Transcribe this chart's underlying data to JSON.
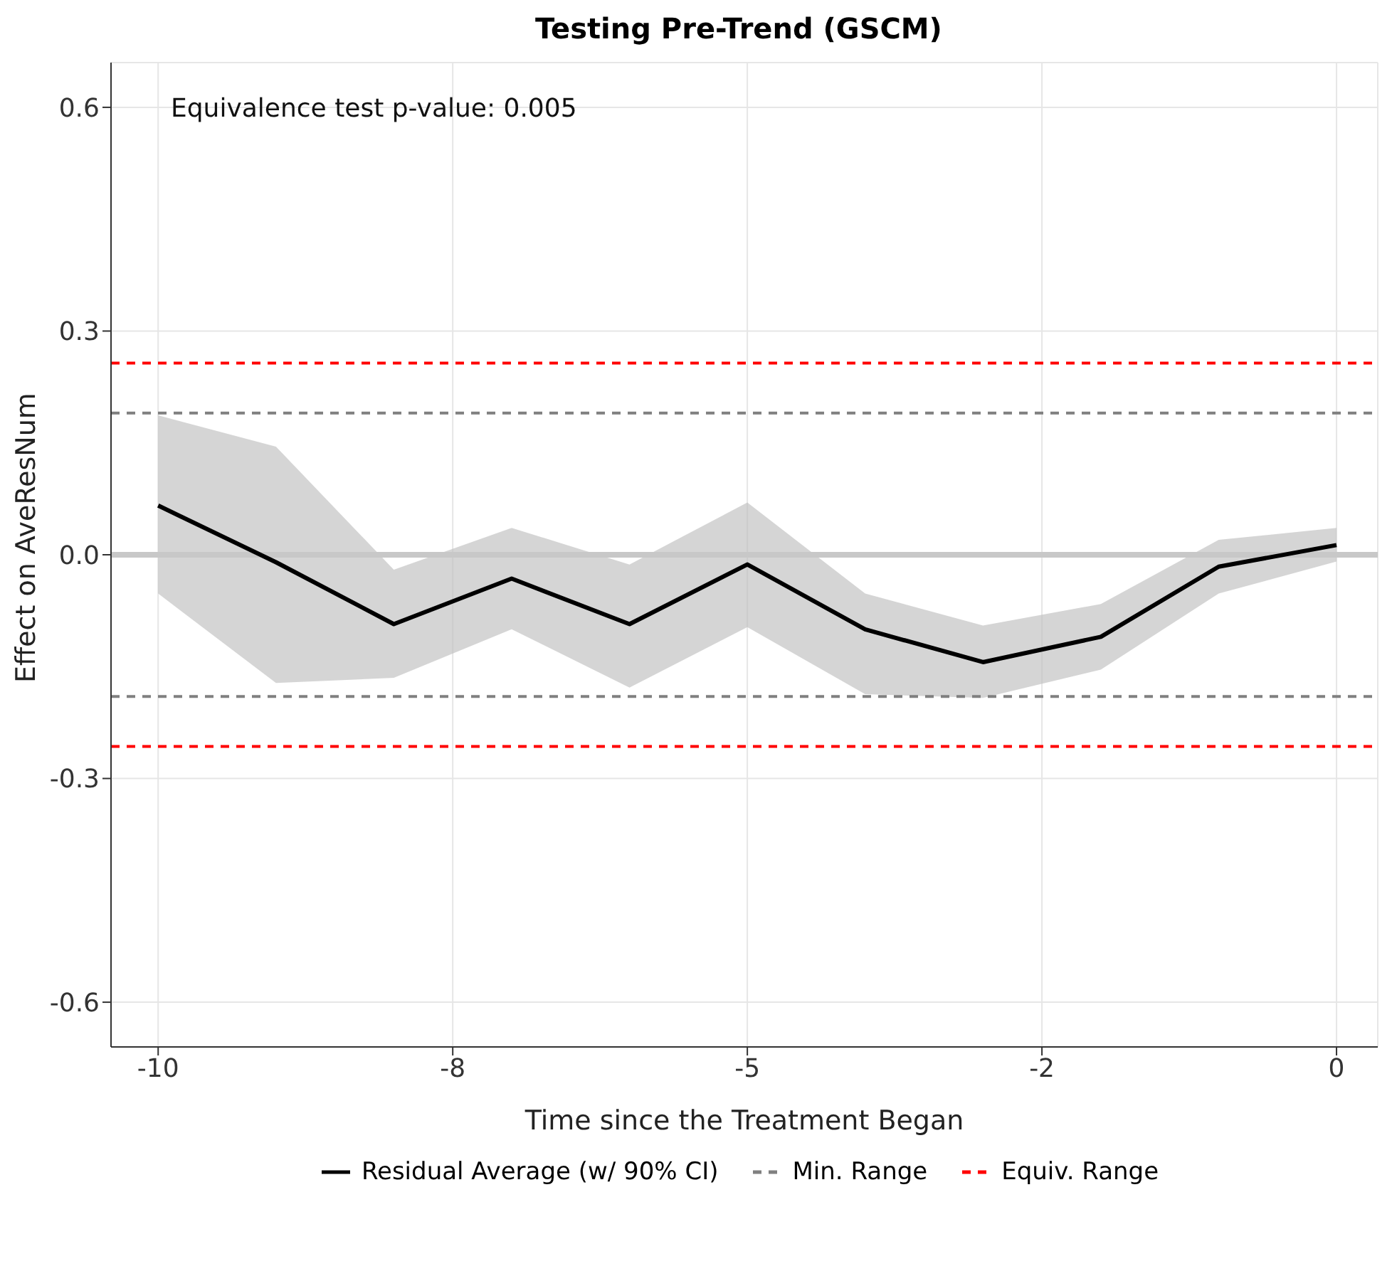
{
  "chart_data": {
    "type": "line",
    "title": "Testing Pre-Trend (GSCM)",
    "xlabel": "Time since the Treatment Began",
    "ylabel": "Effect on AveResNum",
    "x": [
      -10,
      -9,
      -8,
      -7,
      -6,
      -5,
      -4,
      -3,
      -2,
      -1,
      0
    ],
    "series": [
      {
        "name": "Residual Average (w/ 90% CI)",
        "color": "#000000",
        "values": [
          0.066,
          -0.01,
          -0.093,
          -0.032,
          -0.093,
          -0.013,
          -0.1,
          -0.144,
          -0.11,
          -0.016,
          0.013
        ],
        "lower": [
          -0.052,
          -0.172,
          -0.165,
          -0.1,
          -0.178,
          -0.097,
          -0.187,
          -0.192,
          -0.154,
          -0.052,
          -0.009
        ],
        "upper": [
          0.187,
          0.145,
          -0.02,
          0.036,
          -0.013,
          0.07,
          -0.052,
          -0.095,
          -0.066,
          0.02,
          0.036
        ]
      }
    ],
    "ref_lines": [
      {
        "axis": "y",
        "value": 0,
        "label": null,
        "color": "#c8c8c8",
        "line_style": "solid"
      },
      {
        "axis": "y",
        "value": 0.19,
        "label": "Min. Range",
        "color": "#808080",
        "line_style": "dashed"
      },
      {
        "axis": "y",
        "value": -0.19,
        "label": null,
        "color": "#808080",
        "line_style": "dashed"
      },
      {
        "axis": "y",
        "value": 0.257,
        "label": "Equiv. Range",
        "color": "#ff0000",
        "line_style": "dashed"
      },
      {
        "axis": "y",
        "value": -0.257,
        "label": null,
        "color": "#ff0000",
        "line_style": "dashed"
      }
    ],
    "annotations": [
      "Equivalence test p-value: 0.005"
    ],
    "xlim": [
      -10.4,
      0.35
    ],
    "xticks": [
      -10,
      {
        "value": -7.5,
        "label": "-8"
      },
      -5,
      {
        "value": -2.5,
        "label": "-2"
      },
      0
    ],
    "ylim": [
      -0.66,
      0.66
    ],
    "yticks": [
      {
        "value": -0.6,
        "label": "-0.6"
      },
      {
        "value": -0.3,
        "label": "-0.3"
      },
      {
        "value": 0,
        "label": "0.0"
      },
      {
        "value": 0.3,
        "label": "0.3"
      },
      {
        "value": 0.6,
        "label": "0.6"
      }
    ],
    "grid": true,
    "legend": "bottom",
    "line_style": "solid",
    "marker": "none"
  }
}
